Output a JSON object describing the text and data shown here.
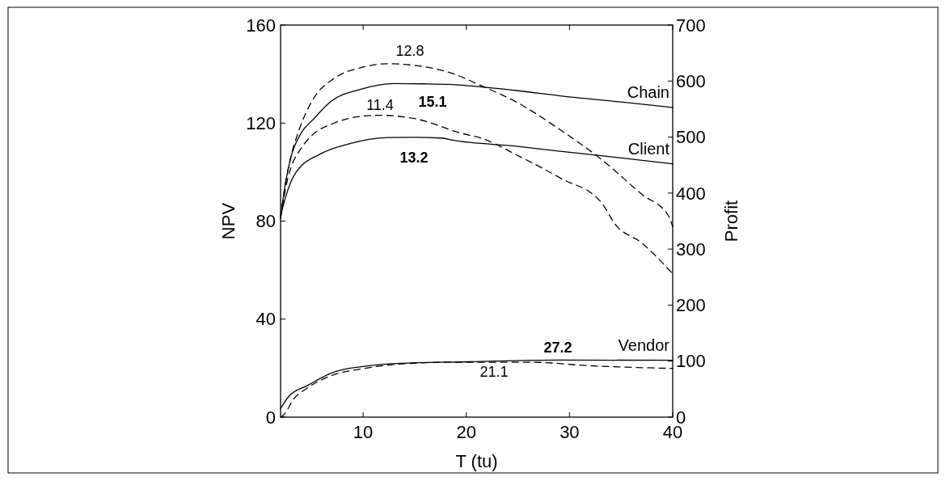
{
  "chart_data": {
    "type": "line",
    "xlabel": "T (tu)",
    "ylabel": "NPV",
    "y2label": "Profit",
    "xlim": [
      2,
      40
    ],
    "xticks": [
      10,
      20,
      30,
      40
    ],
    "ylim": [
      0,
      160
    ],
    "yticks": [
      0,
      40,
      80,
      120,
      160
    ],
    "y2lim": [
      0,
      700
    ],
    "y2ticks": [
      0,
      100,
      200,
      300,
      400,
      500,
      600,
      700
    ],
    "grid": false,
    "marker": "none",
    "series": [
      {
        "name": "Chain",
        "color": "#000000",
        "line_style": "solid",
        "x": [
          2,
          2.5,
          3,
          4,
          5.1,
          6.9,
          9.8,
          13,
          16,
          18.7,
          20.3,
          25,
          29.1,
          35,
          40
        ],
        "values": [
          82,
          96,
          106,
          116,
          121.2,
          128.9,
          133.8,
          136.1,
          136,
          135.7,
          135.2,
          133.2,
          131.1,
          128.6,
          126.4
        ]
      },
      {
        "name": "Client",
        "color": "#000000",
        "line_style": "solid",
        "x": [
          2,
          2.5,
          3,
          3.5,
          5.9,
          8.5,
          12.4,
          15,
          17.6,
          18.7,
          25,
          29.1,
          35,
          40
        ],
        "values": [
          82,
          90,
          96,
          99.9,
          107.5,
          111.4,
          114.1,
          114.2,
          113.9,
          113,
          110.5,
          108.5,
          105.8,
          103.4
        ]
      },
      {
        "name": "Vendor",
        "color": "#000000",
        "line_style": "solid",
        "x": [
          2,
          2.8,
          4.6,
          7.2,
          9.8,
          13.7,
          20.3,
          29.1,
          40
        ],
        "values": [
          3.5,
          8.5,
          12.9,
          18.4,
          20.6,
          22,
          22.6,
          23.3,
          23.2
        ]
      },
      {
        "color": "#000000",
        "line_style": "dashed",
        "axis": "y2",
        "x": [
          2,
          2.5,
          3,
          3.8,
          5.1,
          7.2,
          9.8,
          12.4,
          15,
          18.9,
          21.3,
          25.2,
          29.1,
          33.1,
          37,
          39.6,
          40
        ],
        "values": [
          355,
          420,
          465,
          513,
          566,
          605,
          624,
          631,
          628,
          612,
          593,
          559,
          513,
          460,
          398,
          359,
          340
        ]
      },
      {
        "color": "#000000",
        "line_style": "dashed",
        "axis": "y2",
        "x": [
          2,
          2.5,
          3,
          4,
          5.1,
          7.2,
          9.8,
          11.6,
          15,
          19.7,
          21.3,
          25.2,
          29.1,
          33.1,
          34.4,
          37,
          40
        ],
        "values": [
          355,
          410,
          445,
          480,
          504,
          525,
          537,
          539,
          533,
          506,
          499,
          465,
          427,
          383,
          345,
          311,
          256
        ]
      },
      {
        "color": "#000000",
        "line_style": "dashed",
        "axis": "y2",
        "x": [
          2,
          2.3,
          3.3,
          4.6,
          7.2,
          9.8,
          13.7,
          18.7,
          26.5,
          31.7,
          40
        ],
        "values": [
          0,
          4,
          33,
          52,
          76,
          86,
          95,
          98,
          98,
          92,
          87
        ]
      }
    ],
    "annotations": [
      "12.8",
      "15.1",
      "11.4",
      "13.2",
      "27.2",
      "21.1"
    ]
  }
}
